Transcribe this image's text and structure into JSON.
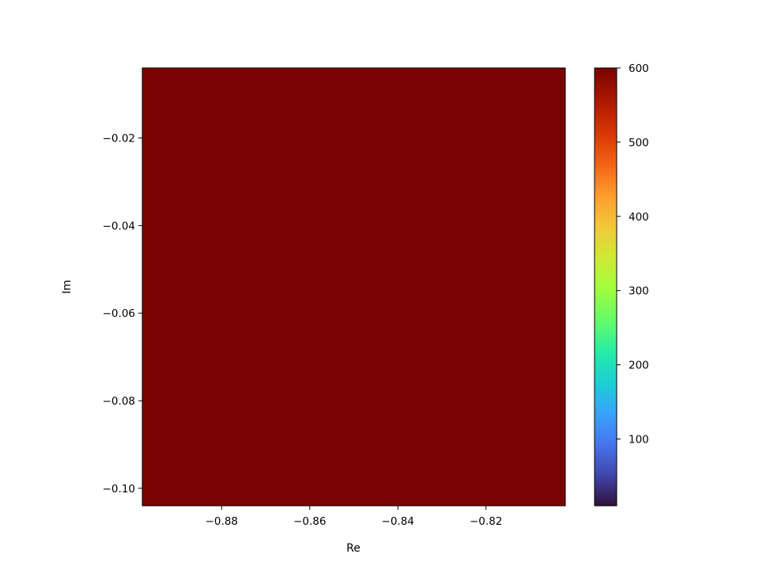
{
  "chart_data": {
    "type": "heatmap",
    "title": "",
    "xlabel": "Re",
    "ylabel": "Im",
    "xlim": [
      -0.898,
      -0.802
    ],
    "ylim": [
      -0.104,
      -0.004
    ],
    "x_ticks": [
      {
        "value": -0.88,
        "label": "−0.88"
      },
      {
        "value": -0.86,
        "label": "−0.86"
      },
      {
        "value": -0.84,
        "label": "−0.84"
      },
      {
        "value": -0.82,
        "label": "−0.82"
      }
    ],
    "y_ticks": [
      {
        "value": -0.02,
        "label": "−0.02"
      },
      {
        "value": -0.04,
        "label": "−0.04"
      },
      {
        "value": -0.06,
        "label": "−0.06"
      },
      {
        "value": -0.08,
        "label": "−0.08"
      },
      {
        "value": -0.1,
        "label": "−0.10"
      }
    ],
    "colorbar": {
      "min": 10,
      "max": 600,
      "ticks": [
        {
          "value": 100,
          "label": "100"
        },
        {
          "value": 200,
          "label": "200"
        },
        {
          "value": 300,
          "label": "300"
        },
        {
          "value": 400,
          "label": "400"
        },
        {
          "value": 500,
          "label": "500"
        },
        {
          "value": 600,
          "label": "600"
        }
      ],
      "colormap": "turbo"
    },
    "max_iterations": 600,
    "grid": false,
    "legend": "none"
  }
}
